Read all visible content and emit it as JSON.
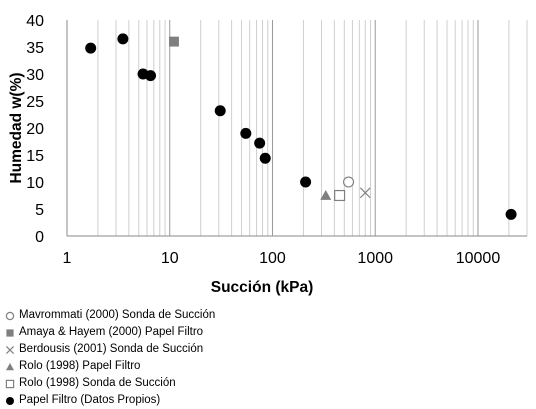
{
  "chart_data": {
    "type": "scatter",
    "title": "",
    "xlabel": "Succión (kPa)",
    "ylabel": "Humedad w(%)",
    "xscale": "log",
    "xlim": [
      1,
      30000
    ],
    "ylim": [
      0,
      40
    ],
    "grid": "x-major-and-minor",
    "legend_position": "bottom-left",
    "x_ticks": [
      {
        "value": 1,
        "label": "1"
      },
      {
        "value": 10,
        "label": "10"
      },
      {
        "value": 100,
        "label": "100"
      },
      {
        "value": 1000,
        "label": "1000"
      },
      {
        "value": 10000,
        "label": "10000"
      }
    ],
    "y_ticks": [
      {
        "value": 0,
        "label": "0"
      },
      {
        "value": 5,
        "label": "5"
      },
      {
        "value": 10,
        "label": "10"
      },
      {
        "value": 15,
        "label": "15"
      },
      {
        "value": 20,
        "label": "20"
      },
      {
        "value": 25,
        "label": "25"
      },
      {
        "value": 30,
        "label": "30"
      },
      {
        "value": 35,
        "label": "35"
      },
      {
        "value": 40,
        "label": "40"
      }
    ],
    "series": [
      {
        "name": "Mavrommati (2000) Sonda de Succión",
        "marker": "circle-open",
        "color": "#7f7f7f",
        "points": [
          {
            "x": 550,
            "y": 10
          }
        ]
      },
      {
        "name": "Amaya & Hayem (2000) Papel Filtro",
        "marker": "square-filled",
        "color": "#7f7f7f",
        "points": [
          {
            "x": 11,
            "y": 36
          }
        ]
      },
      {
        "name": "Berdousis (2001) Sonda de Succión",
        "marker": "x",
        "color": "#7f7f7f",
        "points": [
          {
            "x": 800,
            "y": 8
          }
        ]
      },
      {
        "name": "Rolo (1998) Papel Filtro",
        "marker": "triangle-filled",
        "color": "#7f7f7f",
        "points": [
          {
            "x": 330,
            "y": 7.5
          }
        ]
      },
      {
        "name": "Rolo (1998) Sonda de Succión",
        "marker": "square-open",
        "color": "#7f7f7f",
        "points": [
          {
            "x": 450,
            "y": 7.5
          }
        ]
      },
      {
        "name": "Papel Filtro (Datos Propios)",
        "marker": "circle-filled",
        "color": "#000000",
        "points": [
          {
            "x": 1.7,
            "y": 34.8
          },
          {
            "x": 3.5,
            "y": 36.5
          },
          {
            "x": 5.5,
            "y": 30
          },
          {
            "x": 6.5,
            "y": 29.7
          },
          {
            "x": 31,
            "y": 23.2
          },
          {
            "x": 55,
            "y": 19
          },
          {
            "x": 75,
            "y": 17.2
          },
          {
            "x": 85,
            "y": 14.4
          },
          {
            "x": 210,
            "y": 10
          },
          {
            "x": 21000,
            "y": 4
          }
        ]
      }
    ]
  }
}
